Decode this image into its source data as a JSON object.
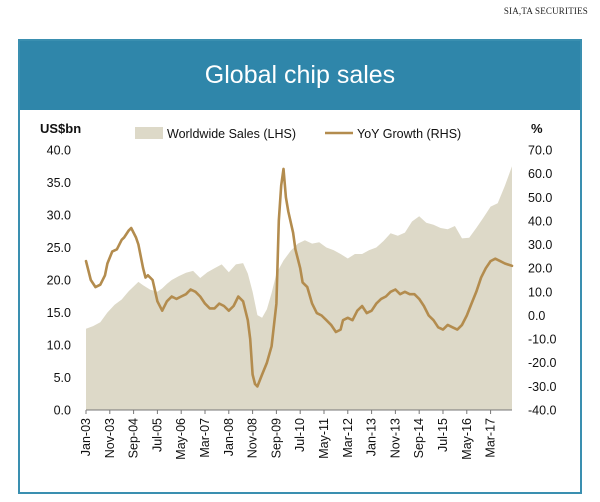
{
  "source": "SIA,TA SECURITIES",
  "chart_data": {
    "type": "area+line",
    "title": "Global chip sales",
    "y_left_label": "US$bn",
    "y_right_label": "%",
    "y_left_range": [
      0,
      40
    ],
    "y_left_ticks": [
      "0.0",
      "5.0",
      "10.0",
      "15.0",
      "20.0",
      "25.0",
      "30.0",
      "35.0",
      "40.0"
    ],
    "y_right_range": [
      -40,
      70
    ],
    "y_right_ticks": [
      "-40.0",
      "-30.0",
      "-20.0",
      "-10.0",
      "0.0",
      "10.0",
      "20.0",
      "30.0",
      "40.0",
      "50.0",
      "60.0",
      "70.0"
    ],
    "x_tick_labels": [
      "Jan-03",
      "Nov-03",
      "Sep-04",
      "Jul-05",
      "May-06",
      "Mar-07",
      "Jan-08",
      "Nov-08",
      "Sep-09",
      "Jul-10",
      "May-11",
      "Mar-12",
      "Jan-13",
      "Nov-13",
      "Sep-14",
      "Jul-15",
      "May-16",
      "Mar-17"
    ],
    "x_tick_months": [
      0,
      10,
      20,
      30,
      40,
      50,
      60,
      70,
      80,
      90,
      100,
      110,
      120,
      130,
      140,
      150,
      160,
      170
    ],
    "x_range_months": [
      0,
      179
    ],
    "grid": false,
    "legend_position": "top",
    "series": [
      {
        "name": "Worldwide Sales (LHS)",
        "kind": "area",
        "axis": "left",
        "color": "#ddd9c8",
        "points": [
          [
            0,
            12.5
          ],
          [
            3,
            12.9
          ],
          [
            6,
            13.5
          ],
          [
            9,
            15.0
          ],
          [
            12,
            16.2
          ],
          [
            15,
            17.0
          ],
          [
            18,
            18.3
          ],
          [
            20,
            19.0
          ],
          [
            22,
            19.7
          ],
          [
            24,
            19.2
          ],
          [
            27,
            18.5
          ],
          [
            30,
            18.2
          ],
          [
            32,
            18.7
          ],
          [
            34,
            19.4
          ],
          [
            36,
            20.0
          ],
          [
            39,
            20.6
          ],
          [
            42,
            21.1
          ],
          [
            45,
            21.4
          ],
          [
            48,
            20.3
          ],
          [
            51,
            21.2
          ],
          [
            54,
            21.8
          ],
          [
            57,
            22.4
          ],
          [
            60,
            21.2
          ],
          [
            63,
            22.4
          ],
          [
            66,
            22.6
          ],
          [
            68,
            21.0
          ],
          [
            70,
            18.2
          ],
          [
            72,
            14.6
          ],
          [
            74,
            14.2
          ],
          [
            76,
            15.5
          ],
          [
            78,
            18.0
          ],
          [
            80,
            21.0
          ],
          [
            83,
            23.0
          ],
          [
            86,
            24.5
          ],
          [
            89,
            25.6
          ],
          [
            92,
            26.1
          ],
          [
            95,
            25.6
          ],
          [
            98,
            25.8
          ],
          [
            101,
            25.0
          ],
          [
            104,
            24.6
          ],
          [
            107,
            24.0
          ],
          [
            110,
            23.3
          ],
          [
            113,
            24.0
          ],
          [
            116,
            24.0
          ],
          [
            119,
            24.6
          ],
          [
            122,
            25.0
          ],
          [
            125,
            26.0
          ],
          [
            128,
            27.2
          ],
          [
            131,
            26.8
          ],
          [
            134,
            27.3
          ],
          [
            137,
            29.0
          ],
          [
            140,
            29.8
          ],
          [
            143,
            28.8
          ],
          [
            146,
            28.5
          ],
          [
            149,
            28.0
          ],
          [
            152,
            27.8
          ],
          [
            155,
            28.3
          ],
          [
            158,
            26.4
          ],
          [
            161,
            26.5
          ],
          [
            164,
            28.0
          ],
          [
            167,
            29.6
          ],
          [
            170,
            31.3
          ],
          [
            173,
            31.8
          ],
          [
            176,
            34.5
          ],
          [
            179,
            37.5
          ]
        ]
      },
      {
        "name": "YoY Growth (RHS)",
        "kind": "line",
        "axis": "right",
        "color": "#b38c4e",
        "points": [
          [
            0,
            23
          ],
          [
            2,
            15
          ],
          [
            4,
            12
          ],
          [
            6,
            13
          ],
          [
            8,
            17
          ],
          [
            9,
            22
          ],
          [
            11,
            27
          ],
          [
            13,
            28
          ],
          [
            15,
            32
          ],
          [
            16,
            33
          ],
          [
            18,
            36
          ],
          [
            19,
            37
          ],
          [
            21,
            33
          ],
          [
            22,
            30
          ],
          [
            24,
            20
          ],
          [
            25,
            16
          ],
          [
            26,
            17
          ],
          [
            28,
            15
          ],
          [
            30,
            6
          ],
          [
            32,
            2
          ],
          [
            34,
            6
          ],
          [
            36,
            8
          ],
          [
            38,
            7
          ],
          [
            40,
            8
          ],
          [
            42,
            9
          ],
          [
            43,
            10
          ],
          [
            44,
            11
          ],
          [
            46,
            10
          ],
          [
            48,
            8
          ],
          [
            50,
            5
          ],
          [
            52,
            3
          ],
          [
            54,
            3
          ],
          [
            56,
            5
          ],
          [
            58,
            4
          ],
          [
            60,
            2
          ],
          [
            62,
            4
          ],
          [
            64,
            8
          ],
          [
            66,
            6
          ],
          [
            68,
            -2
          ],
          [
            69,
            -10
          ],
          [
            70,
            -25
          ],
          [
            71,
            -29
          ],
          [
            72,
            -30
          ],
          [
            74,
            -25
          ],
          [
            76,
            -20
          ],
          [
            78,
            -13
          ],
          [
            80,
            5
          ],
          [
            81,
            40
          ],
          [
            82,
            55
          ],
          [
            83,
            62
          ],
          [
            84,
            50
          ],
          [
            85,
            44
          ],
          [
            87,
            35
          ],
          [
            88,
            28
          ],
          [
            90,
            20
          ],
          [
            91,
            14
          ],
          [
            93,
            12
          ],
          [
            95,
            5
          ],
          [
            97,
            1
          ],
          [
            99,
            0
          ],
          [
            101,
            -2
          ],
          [
            103,
            -4
          ],
          [
            105,
            -7
          ],
          [
            107,
            -6
          ],
          [
            108,
            -2
          ],
          [
            110,
            -1
          ],
          [
            112,
            -2
          ],
          [
            114,
            2
          ],
          [
            116,
            4
          ],
          [
            118,
            1
          ],
          [
            120,
            2
          ],
          [
            122,
            5
          ],
          [
            124,
            7
          ],
          [
            126,
            8
          ],
          [
            128,
            10
          ],
          [
            130,
            11
          ],
          [
            132,
            9
          ],
          [
            134,
            10
          ],
          [
            136,
            9
          ],
          [
            138,
            9
          ],
          [
            140,
            7
          ],
          [
            142,
            4
          ],
          [
            144,
            0
          ],
          [
            146,
            -2
          ],
          [
            148,
            -5
          ],
          [
            150,
            -6
          ],
          [
            152,
            -4
          ],
          [
            154,
            -5
          ],
          [
            156,
            -6
          ],
          [
            158,
            -4
          ],
          [
            160,
            0
          ],
          [
            162,
            5
          ],
          [
            164,
            10
          ],
          [
            166,
            16
          ],
          [
            168,
            20
          ],
          [
            170,
            23
          ],
          [
            172,
            24
          ],
          [
            174,
            23
          ],
          [
            176,
            22
          ],
          [
            179,
            21
          ]
        ]
      }
    ]
  }
}
